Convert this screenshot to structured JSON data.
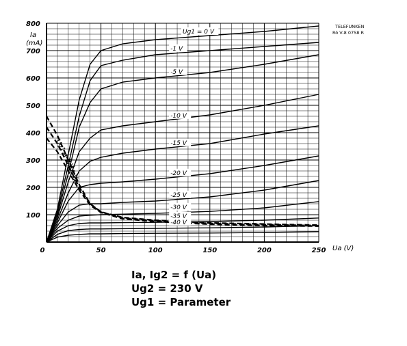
{
  "chart_data": {
    "type": "line",
    "title": "",
    "xlabel": "Ua (V)",
    "ylabel": "Ia (mA)",
    "xlim": [
      0,
      250
    ],
    "ylim": [
      0,
      800
    ],
    "xticks": [
      50,
      100,
      150,
      200,
      250
    ],
    "yticks": [
      100,
      200,
      300,
      400,
      500,
      600,
      700,
      800
    ],
    "x_tick_labels": [
      "50",
      "100",
      "150",
      "200",
      "250"
    ],
    "y_tick_labels": [
      "100",
      "200",
      "300",
      "400",
      "500",
      "600",
      "700",
      "800"
    ],
    "zero_label": "0",
    "y_unit_label": "Ia",
    "y_unit_label2": "(mA)",
    "grid": true,
    "stamp": [
      "TELEFUNKEN",
      "Rö V-8 0758 R"
    ],
    "anode_current_series": [
      {
        "name": "Ug1 = 0 V",
        "label": "Ug1 = 0 V",
        "x": [
          0,
          10,
          20,
          30,
          40,
          50,
          70,
          100,
          150,
          200,
          250
        ],
        "y": [
          0,
          120,
          320,
          520,
          650,
          700,
          725,
          740,
          755,
          770,
          790
        ]
      },
      {
        "name": "-1 V",
        "label": "-1 V",
        "x": [
          0,
          10,
          20,
          30,
          40,
          50,
          70,
          100,
          150,
          200,
          250
        ],
        "y": [
          0,
          110,
          280,
          460,
          590,
          645,
          665,
          685,
          700,
          715,
          730
        ]
      },
      {
        "name": "-5 V",
        "label": "-5 V",
        "x": [
          0,
          10,
          20,
          30,
          40,
          50,
          70,
          100,
          150,
          200,
          250
        ],
        "y": [
          0,
          100,
          250,
          420,
          510,
          560,
          585,
          600,
          620,
          650,
          685
        ]
      },
      {
        "name": "-10 V",
        "label": "-10 V",
        "x": [
          0,
          10,
          20,
          30,
          40,
          50,
          70,
          100,
          150,
          200,
          250
        ],
        "y": [
          0,
          90,
          220,
          330,
          380,
          410,
          425,
          440,
          465,
          500,
          540
        ]
      },
      {
        "name": "-15 V",
        "label": "-15 V",
        "x": [
          0,
          10,
          20,
          30,
          40,
          50,
          70,
          100,
          150,
          200,
          250
        ],
        "y": [
          0,
          80,
          180,
          260,
          295,
          310,
          325,
          340,
          360,
          395,
          425
        ]
      },
      {
        "name": "-20 V",
        "label": "-20 V",
        "x": [
          0,
          10,
          20,
          30,
          40,
          50,
          70,
          100,
          150,
          200,
          250
        ],
        "y": [
          0,
          70,
          150,
          200,
          210,
          215,
          220,
          230,
          250,
          280,
          315
        ]
      },
      {
        "name": "-25 V",
        "label": "-25 V",
        "x": [
          0,
          10,
          20,
          30,
          40,
          50,
          70,
          100,
          150,
          200,
          250
        ],
        "y": [
          0,
          60,
          110,
          135,
          140,
          140,
          145,
          150,
          165,
          190,
          225
        ]
      },
      {
        "name": "-30 V",
        "label": "-30 V",
        "x": [
          0,
          10,
          20,
          30,
          40,
          50,
          70,
          100,
          150,
          200,
          250
        ],
        "y": [
          0,
          50,
          80,
          95,
          98,
          100,
          102,
          105,
          112,
          125,
          148
        ]
      },
      {
        "name": "-35 V",
        "label": "-35 V",
        "x": [
          0,
          10,
          20,
          30,
          40,
          50,
          70,
          100,
          150,
          200,
          250
        ],
        "y": [
          0,
          40,
          60,
          68,
          70,
          70,
          71,
          72,
          75,
          80,
          88
        ]
      },
      {
        "name": "-40 V",
        "label": "-40 V",
        "x": [
          0,
          10,
          20,
          30,
          40,
          50,
          70,
          100,
          150,
          200,
          250
        ],
        "y": [
          0,
          28,
          42,
          46,
          48,
          48,
          49,
          50,
          52,
          55,
          60
        ]
      },
      {
        "name": "",
        "label": "",
        "x": [
          0,
          10,
          20,
          30,
          40,
          50,
          70,
          100,
          150,
          200,
          250
        ],
        "y": [
          0,
          18,
          25,
          28,
          30,
          30,
          31,
          32,
          33,
          35,
          38
        ]
      }
    ],
    "screen_grid_current_series": [
      {
        "name": "Ug1 = 0 V",
        "label": "Ug1 = 0 V",
        "x": [
          0,
          10,
          20,
          30,
          40,
          50,
          70,
          100,
          150,
          200,
          250
        ],
        "y": [
          460,
          390,
          300,
          210,
          140,
          110,
          90,
          80,
          70,
          66,
          62
        ]
      },
      {
        "name": "-1 V",
        "label": "-1 V",
        "x": [
          0,
          10,
          20,
          30,
          40,
          50,
          70,
          100,
          150,
          200,
          250
        ],
        "y": [
          420,
          360,
          280,
          200,
          140,
          110,
          88,
          78,
          68,
          64,
          60
        ]
      },
      {
        "name": "-10 V",
        "label": "-10 V",
        "x": [
          0,
          10,
          20,
          30,
          40,
          50,
          70,
          100,
          150,
          200,
          250
        ],
        "y": [
          380,
          330,
          260,
          190,
          135,
          108,
          85,
          75,
          65,
          60,
          58
        ]
      }
    ],
    "screen_labels": [
      "Ug1 = 0 V",
      "-1 V",
      "-10 V"
    ]
  },
  "formula": {
    "line1": "Ia, Ig2 = f (Ua)",
    "line2": "Ug2 = 230 V",
    "line3": "Ug1 = Parameter"
  }
}
